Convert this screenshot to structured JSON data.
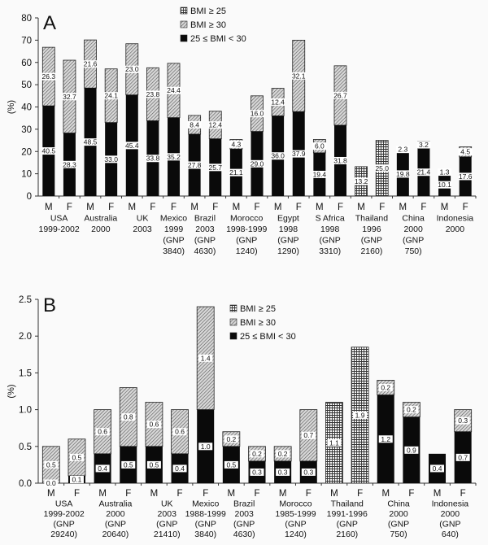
{
  "colors": {
    "black": "#0a0a0a",
    "axis": "#333333",
    "background": "#fafafa"
  },
  "chart_data": [
    {
      "type": "bar",
      "panel_label": "A",
      "ylabel": "(%)",
      "ylim": [
        0,
        80
      ],
      "yticks": [
        "0",
        "10",
        "20",
        "30",
        "40",
        "50",
        "60",
        "70",
        "80"
      ],
      "ytick_values": [
        0,
        10,
        20,
        30,
        40,
        50,
        60,
        70,
        80
      ],
      "legend": [
        "BMI ≥ 25",
        "BMI ≥ 30",
        "25 ≤ BMI < 30"
      ],
      "legend_placement": "top-right",
      "groups": [
        {
          "label": [
            "USA",
            "1999-2002"
          ],
          "bars": [
            {
              "sex": "M",
              "overweight": 40.5,
              "obese": 26.3,
              "overweight_label": "40.5",
              "obese_label": "26.3"
            },
            {
              "sex": "F",
              "overweight": 28.3,
              "obese": 32.7,
              "overweight_label": "28.3",
              "obese_label": "32.7"
            }
          ]
        },
        {
          "label": [
            "Australia",
            "2000"
          ],
          "bars": [
            {
              "sex": "M",
              "overweight": 48.5,
              "obese": 21.6,
              "overweight_label": "48.5",
              "obese_label": "21.6"
            },
            {
              "sex": "F",
              "overweight": 33.0,
              "obese": 24.1,
              "overweight_label": "33.0",
              "obese_label": "24.1"
            }
          ]
        },
        {
          "label": [
            "UK",
            "2003"
          ],
          "bars": [
            {
              "sex": "M",
              "overweight": 45.4,
              "obese": 23.0,
              "overweight_label": "45.4",
              "obese_label": "23.0"
            },
            {
              "sex": "F",
              "overweight": 33.8,
              "obese": 23.8,
              "overweight_label": "33.8",
              "obese_label": "23.8"
            }
          ]
        },
        {
          "label": [
            "Mexico",
            "1999",
            "(GNP",
            "3840)"
          ],
          "bars": [
            {
              "sex": "F",
              "overweight": 35.2,
              "obese": 24.4,
              "overweight_label": "35.2",
              "obese_label": "24.4"
            }
          ]
        },
        {
          "label": [
            "Brazil",
            "2003",
            "(GNP",
            "4630)"
          ],
          "bars": [
            {
              "sex": "M",
              "overweight": 27.8,
              "obese": 8.4,
              "overweight_label": "27.8",
              "obese_label": "8.4"
            },
            {
              "sex": "F",
              "overweight": 25.7,
              "obese": 12.4,
              "overweight_label": "25.7",
              "obese_label": "12.4"
            }
          ]
        },
        {
          "label": [
            "Morocco",
            "1998-1999",
            "(GNP",
            "1240)"
          ],
          "bars": [
            {
              "sex": "M",
              "overweight": 21.1,
              "obese": 4.3,
              "overweight_label": "21.1",
              "obese_label": "4.3"
            },
            {
              "sex": "F",
              "overweight": 29.0,
              "obese": 16.0,
              "overweight_label": "29.0",
              "obese_label": "16.0"
            }
          ]
        },
        {
          "label": [
            "Egypt",
            "1998",
            "(GNP",
            "1290)"
          ],
          "bars": [
            {
              "sex": "M",
              "overweight": 36.0,
              "obese": 12.4,
              "overweight_label": "36.0",
              "obese_label": "12.4"
            },
            {
              "sex": "F",
              "overweight": 37.9,
              "obese": 32.1,
              "overweight_label": "37.9",
              "obese_label": "32.1"
            }
          ]
        },
        {
          "label": [
            "S Africa",
            "1998",
            "(GNP",
            "3310)"
          ],
          "bars": [
            {
              "sex": "M",
              "overweight": 19.4,
              "obese": 6.0,
              "overweight_label": "19.4",
              "obese_label": "6.0"
            },
            {
              "sex": "F",
              "overweight": 31.8,
              "obese": 26.7,
              "overweight_label": "31.8",
              "obese_label": "26.7"
            }
          ]
        },
        {
          "label": [
            "Thailand",
            "1996",
            "(GNP",
            "2160)"
          ],
          "bars": [
            {
              "sex": "M",
              "total_only": 13.2,
              "total_label": "13.2"
            },
            {
              "sex": "F",
              "total_only": 25.0,
              "total_label": "25.0"
            }
          ]
        },
        {
          "label": [
            "China",
            "2000",
            "(GNP",
            "750)"
          ],
          "bars": [
            {
              "sex": "M",
              "overweight": 19.8,
              "obese": 2.3,
              "overweight_label": "19.8",
              "obese_label": "2.3"
            },
            {
              "sex": "F",
              "overweight": 21.4,
              "obese": 3.2,
              "overweight_label": "21.4",
              "obese_label": "3.2"
            }
          ]
        },
        {
          "label": [
            "Indonesia",
            "2000"
          ],
          "bars": [
            {
              "sex": "M",
              "overweight": 10.1,
              "obese": 1.3,
              "overweight_label": "10.1",
              "obese_label": "1.3"
            },
            {
              "sex": "F",
              "overweight": 17.6,
              "obese": 4.5,
              "overweight_label": "17.6",
              "obese_label": "4.5"
            }
          ]
        }
      ]
    },
    {
      "type": "bar",
      "panel_label": "B",
      "ylabel": "(%)",
      "ylim": [
        0,
        2.5
      ],
      "yticks": [
        "0.0",
        "0.5",
        "1.0",
        "1.5",
        "2.0",
        "2.5"
      ],
      "ytick_values": [
        0,
        0.5,
        1.0,
        1.5,
        2.0,
        2.5
      ],
      "legend": [
        "BMI ≥ 25",
        "BMI ≥ 30",
        "25 ≤ BMI < 30"
      ],
      "legend_placement": "top-center",
      "groups": [
        {
          "label": [
            "USA",
            "1999-2002",
            "(GNP",
            "29240)"
          ],
          "bars": [
            {
              "sex": "M",
              "overweight": 0.0,
              "obese": 0.5,
              "overweight_label": "0.0",
              "obese_label": "0.5"
            },
            {
              "sex": "F",
              "overweight": 0.1,
              "obese": 0.5,
              "overweight_label": "0.1",
              "obese_label": "0.5"
            }
          ]
        },
        {
          "label": [
            "Australia",
            "2000",
            "(GNP",
            "20640)"
          ],
          "bars": [
            {
              "sex": "M",
              "overweight": 0.4,
              "obese": 0.6,
              "overweight_label": "0.4",
              "obese_label": "0.6"
            },
            {
              "sex": "F",
              "overweight": 0.5,
              "obese": 0.8,
              "overweight_label": "0.5",
              "obese_label": "0.8"
            }
          ]
        },
        {
          "label": [
            "UK",
            "2003",
            "(GNP",
            "21410)"
          ],
          "bars": [
            {
              "sex": "M",
              "overweight": 0.5,
              "obese": 0.6,
              "overweight_label": "0.5",
              "obese_label": "0.6"
            },
            {
              "sex": "F",
              "overweight": 0.4,
              "obese": 0.6,
              "overweight_label": "0.4",
              "obese_label": "0.6"
            }
          ]
        },
        {
          "label": [
            "Mexico",
            "1988-1999",
            "(GNP",
            "3840)"
          ],
          "bars": [
            {
              "sex": "F",
              "overweight": 1.0,
              "obese": 1.4,
              "overweight_label": "1.0",
              "obese_label": "1.4"
            }
          ]
        },
        {
          "label": [
            "Brazil",
            "2003",
            "(GNP",
            "4630)"
          ],
          "bars": [
            {
              "sex": "M",
              "overweight": 0.5,
              "obese": 0.2,
              "overweight_label": "0.5",
              "obese_label": "0.2"
            },
            {
              "sex": "F",
              "overweight": 0.3,
              "obese": 0.2,
              "overweight_label": "0.3",
              "obese_label": "0.2"
            }
          ]
        },
        {
          "label": [
            "Morocco",
            "1985-1999",
            "(GNP",
            "1240)"
          ],
          "bars": [
            {
              "sex": "M",
              "overweight": 0.3,
              "obese": 0.2,
              "overweight_label": "0.3",
              "obese_label": "0.2"
            },
            {
              "sex": "F",
              "overweight": 0.3,
              "obese": 0.7,
              "overweight_label": "0.3",
              "obese_label": "0.7"
            }
          ]
        },
        {
          "label": [
            "Thailand",
            "1991-1996",
            "(GNP",
            "2160)"
          ],
          "bars": [
            {
              "sex": "M",
              "total_only": 1.1,
              "total_label": "1.1"
            },
            {
              "sex": "F",
              "total_only": 1.85,
              "total_label": "1.9"
            }
          ]
        },
        {
          "label": [
            "China",
            "2000",
            "(GNP",
            "750)"
          ],
          "bars": [
            {
              "sex": "M",
              "overweight": 1.2,
              "obese": 0.2,
              "overweight_label": "1.2",
              "obese_label": "0.2"
            },
            {
              "sex": "F",
              "overweight": 0.9,
              "obese": 0.2,
              "overweight_label": "0.9",
              "obese_label": "0.2"
            }
          ]
        },
        {
          "label": [
            "Indonesia",
            "2000",
            "(GNP",
            "640)"
          ],
          "bars": [
            {
              "sex": "M",
              "overweight": 0.4,
              "overweight_label": "0.4"
            },
            {
              "sex": "F",
              "overweight": 0.7,
              "obese": 0.3,
              "overweight_label": "0.7",
              "obese_label": "0.3"
            }
          ]
        }
      ]
    }
  ]
}
